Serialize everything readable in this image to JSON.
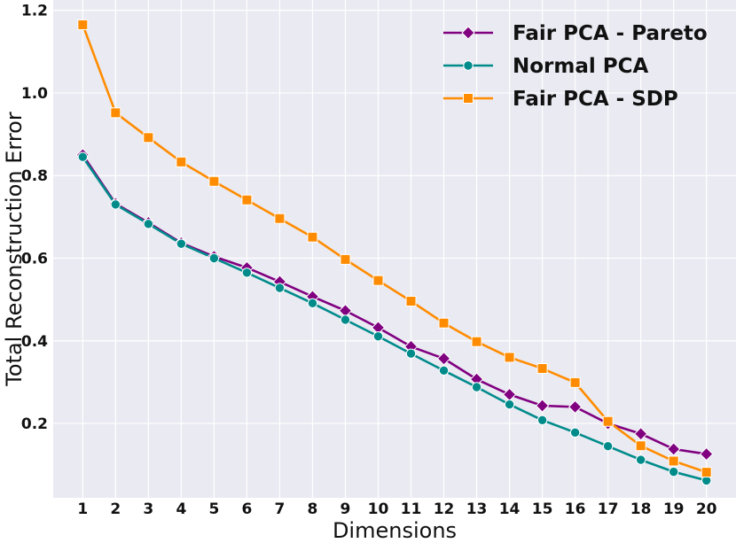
{
  "chart_data": {
    "type": "line",
    "title": "",
    "xlabel": "Dimensions",
    "ylabel": "Total Reconstruction Error",
    "x": [
      1,
      2,
      3,
      4,
      5,
      6,
      7,
      8,
      9,
      10,
      11,
      12,
      13,
      14,
      15,
      16,
      17,
      18,
      19,
      20
    ],
    "x_tick_labels": [
      "1",
      "2",
      "3",
      "4",
      "5",
      "6",
      "7",
      "8",
      "9",
      "10",
      "11",
      "12",
      "13",
      "14",
      "15",
      "16",
      "17",
      "18",
      "19",
      "20"
    ],
    "y_ticks": [
      0.2,
      0.4,
      0.6,
      0.8,
      1.0,
      1.2
    ],
    "y_tick_labels": [
      "0.2",
      "0.4",
      "0.6",
      "0.8",
      "1.0",
      "1.2"
    ],
    "xlim": [
      0.1,
      20.9
    ],
    "ylim": [
      0.02,
      1.225
    ],
    "grid": true,
    "legend_position": "top-right",
    "series": [
      {
        "name": "Fair PCA - Pareto",
        "color": "#800080",
        "marker": "diamond",
        "values": [
          0.85,
          0.732,
          0.686,
          0.637,
          0.604,
          0.577,
          0.543,
          0.507,
          0.473,
          0.432,
          0.386,
          0.357,
          0.307,
          0.27,
          0.243,
          0.24,
          0.2,
          0.175,
          0.138,
          0.126
        ]
      },
      {
        "name": "Normal PCA",
        "color": "#008b8b",
        "marker": "circle",
        "values": [
          0.845,
          0.73,
          0.683,
          0.635,
          0.6,
          0.565,
          0.528,
          0.491,
          0.451,
          0.411,
          0.369,
          0.328,
          0.288,
          0.246,
          0.208,
          0.178,
          0.145,
          0.112,
          0.083,
          0.062
        ]
      },
      {
        "name": "Fair PCA - SDP",
        "color": "#ff8c00",
        "marker": "square",
        "values": [
          1.165,
          0.952,
          0.892,
          0.833,
          0.786,
          0.741,
          0.696,
          0.651,
          0.597,
          0.546,
          0.496,
          0.443,
          0.398,
          0.36,
          0.333,
          0.299,
          0.205,
          0.146,
          0.109,
          0.082
        ]
      }
    ]
  }
}
